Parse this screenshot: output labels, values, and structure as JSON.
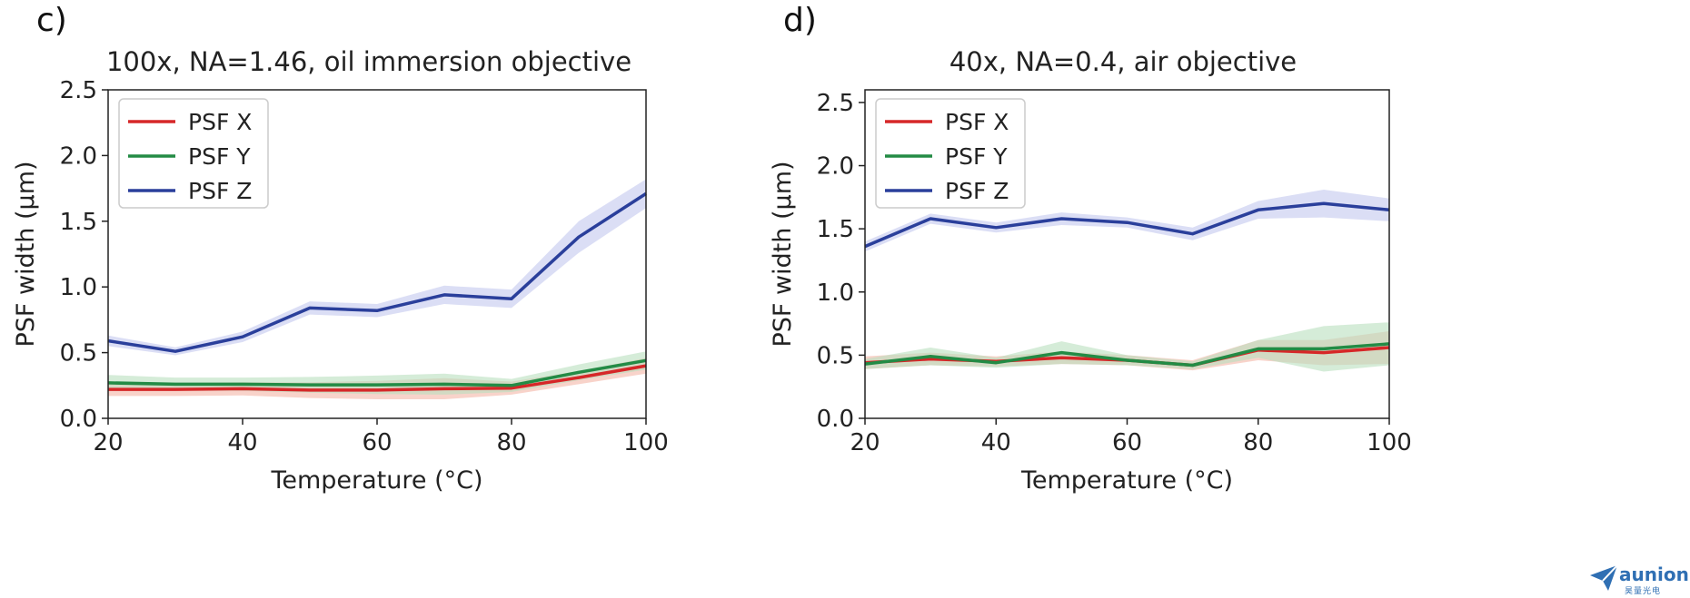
{
  "chart_data": [
    {
      "panel_label": "c)",
      "type": "line",
      "title": "100x, NA=1.46, oil immersion objective",
      "xlabel": "Temperature (°C)",
      "ylabel": "PSF width (µm)",
      "xlim": [
        20,
        100
      ],
      "ylim": [
        0,
        2.5
      ],
      "xticks": [
        "20",
        "40",
        "60",
        "80",
        "100"
      ],
      "yticks": [
        "0.0",
        "0.5",
        "1.0",
        "1.5",
        "2.0",
        "2.5"
      ],
      "legend_position": "top-left",
      "x": [
        20,
        30,
        40,
        50,
        60,
        70,
        80,
        90,
        100
      ],
      "series": [
        {
          "name": "PSF X",
          "color": "#d62728",
          "fill": "#f4b6a6",
          "values": [
            0.22,
            0.22,
            0.225,
            0.215,
            0.215,
            0.225,
            0.23,
            0.31,
            0.4
          ],
          "band": [
            0.05,
            0.05,
            0.05,
            0.06,
            0.07,
            0.08,
            0.05,
            0.05,
            0.06
          ]
        },
        {
          "name": "PSF Y",
          "color": "#238b45",
          "fill": "#b9dfbe",
          "values": [
            0.27,
            0.26,
            0.26,
            0.255,
            0.255,
            0.26,
            0.25,
            0.35,
            0.44
          ],
          "band": [
            0.06,
            0.05,
            0.05,
            0.06,
            0.07,
            0.08,
            0.05,
            0.06,
            0.07
          ]
        },
        {
          "name": "PSF Z",
          "color": "#2a3f9b",
          "fill": "#c3c8ee",
          "values": [
            0.59,
            0.51,
            0.62,
            0.84,
            0.82,
            0.94,
            0.91,
            1.38,
            1.71
          ],
          "band": [
            0.04,
            0.03,
            0.04,
            0.05,
            0.05,
            0.07,
            0.07,
            0.12,
            0.11
          ]
        }
      ]
    },
    {
      "panel_label": "d)",
      "type": "line",
      "title": "40x, NA=0.4, air objective",
      "xlabel": "Temperature (°C)",
      "ylabel": "PSF width (µm)",
      "xlim": [
        20,
        100
      ],
      "ylim": [
        0,
        2.6
      ],
      "xticks": [
        "20",
        "40",
        "60",
        "80",
        "100"
      ],
      "yticks": [
        "0.0",
        "0.5",
        "1.0",
        "1.5",
        "2.0",
        "2.5"
      ],
      "legend_position": "top-left",
      "x": [
        20,
        30,
        40,
        50,
        60,
        70,
        80,
        90,
        100
      ],
      "series": [
        {
          "name": "PSF X",
          "color": "#d62728",
          "fill": "#f4b6a6",
          "values": [
            0.44,
            0.47,
            0.45,
            0.48,
            0.46,
            0.42,
            0.54,
            0.52,
            0.56
          ],
          "band": [
            0.05,
            0.05,
            0.04,
            0.05,
            0.04,
            0.04,
            0.08,
            0.1,
            0.13
          ]
        },
        {
          "name": "PSF Y",
          "color": "#238b45",
          "fill": "#b9dfbe",
          "values": [
            0.43,
            0.49,
            0.44,
            0.52,
            0.46,
            0.42,
            0.55,
            0.55,
            0.59
          ],
          "band": [
            0.04,
            0.07,
            0.04,
            0.09,
            0.04,
            0.03,
            0.07,
            0.18,
            0.17
          ]
        },
        {
          "name": "PSF Z",
          "color": "#2a3f9b",
          "fill": "#c3c8ee",
          "values": [
            1.36,
            1.58,
            1.51,
            1.58,
            1.55,
            1.46,
            1.65,
            1.7,
            1.65
          ],
          "band": [
            0.04,
            0.04,
            0.04,
            0.05,
            0.04,
            0.05,
            0.07,
            0.11,
            0.09
          ]
        }
      ]
    }
  ],
  "watermark": {
    "text": "aunion",
    "sub": "昊量光电",
    "icon": "paper-plane-icon",
    "color": "#2f6fb3"
  }
}
